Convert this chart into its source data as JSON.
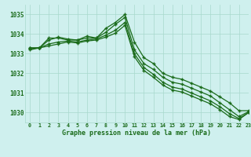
{
  "title": "Graphe pression niveau de la mer (hPa)",
  "xlabel_hours": [
    0,
    1,
    2,
    3,
    4,
    5,
    6,
    7,
    8,
    9,
    10,
    11,
    12,
    13,
    14,
    15,
    16,
    17,
    18,
    19,
    20,
    21,
    22,
    23
  ],
  "xlim": [
    -0.5,
    23
  ],
  "ylim": [
    1029.5,
    1035.5
  ],
  "yticks": [
    1030,
    1031,
    1032,
    1033,
    1034,
    1035
  ],
  "bg_color": "#cff0ee",
  "grid_color": "#a8d8cc",
  "line_color": "#1a6b1a",
  "lines": [
    [
      1033.3,
      1033.3,
      1033.8,
      1033.8,
      1033.7,
      1033.7,
      1033.9,
      1033.8,
      1034.3,
      1034.6,
      1035.0,
      1033.6,
      1032.8,
      1032.5,
      1032.0,
      1031.8,
      1031.7,
      1031.5,
      1031.3,
      1031.1,
      1030.8,
      1030.5,
      1030.1,
      1030.1
    ],
    [
      1033.3,
      1033.3,
      1033.7,
      1033.85,
      1033.75,
      1033.7,
      1033.8,
      1033.8,
      1034.1,
      1034.5,
      1034.85,
      1033.2,
      1032.5,
      1032.2,
      1031.8,
      1031.55,
      1031.45,
      1031.25,
      1031.05,
      1030.85,
      1030.5,
      1030.15,
      1029.8,
      1030.05
    ],
    [
      1033.25,
      1033.3,
      1033.5,
      1033.6,
      1033.65,
      1033.6,
      1033.7,
      1033.75,
      1033.95,
      1034.2,
      1034.6,
      1033.0,
      1032.3,
      1031.95,
      1031.55,
      1031.3,
      1031.2,
      1031.0,
      1030.8,
      1030.6,
      1030.3,
      1029.95,
      1029.7,
      1030.0
    ],
    [
      1033.2,
      1033.3,
      1033.4,
      1033.5,
      1033.6,
      1033.55,
      1033.65,
      1033.7,
      1033.85,
      1034.05,
      1034.45,
      1032.85,
      1032.15,
      1031.8,
      1031.4,
      1031.15,
      1031.05,
      1030.85,
      1030.65,
      1030.45,
      1030.15,
      1029.8,
      1029.65,
      1030.0
    ]
  ]
}
